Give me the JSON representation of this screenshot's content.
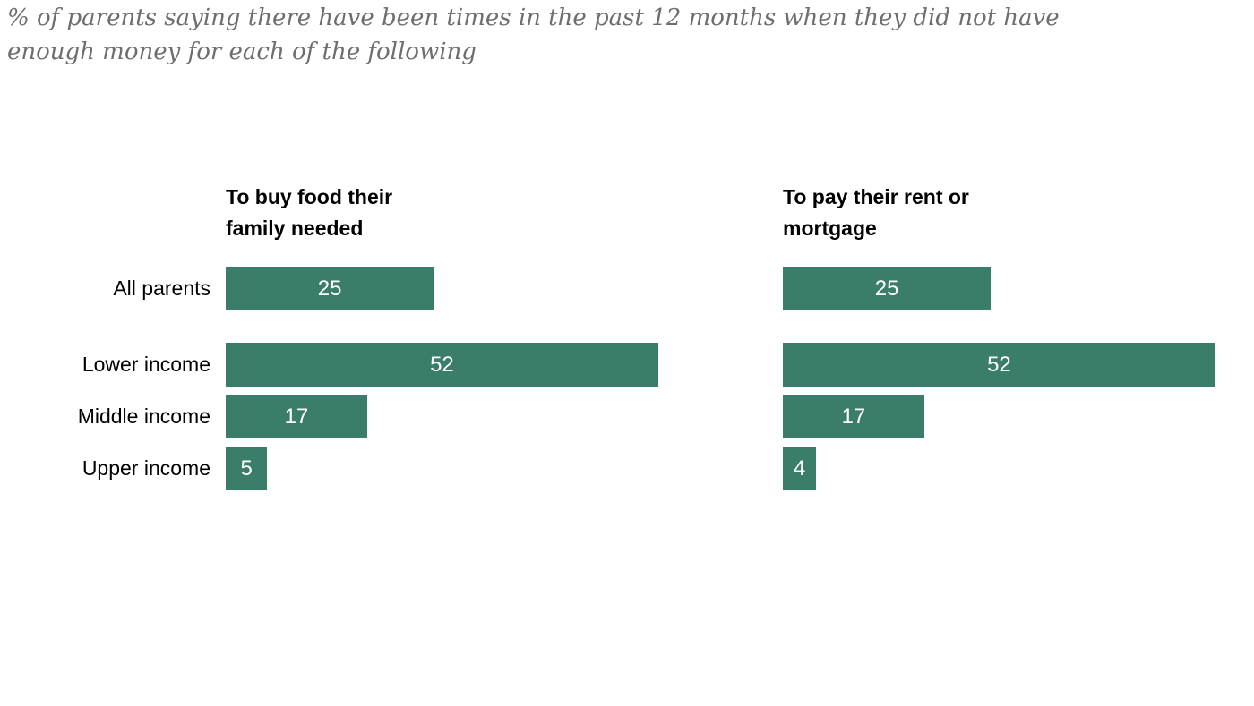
{
  "title": "% of parents saying there have been times in the past 12 months when they did not have enough money for each of the following",
  "chart_data": {
    "type": "bar",
    "orientation": "horizontal",
    "categories": [
      "All parents",
      "Lower income",
      "Middle income",
      "Upper income"
    ],
    "series": [
      {
        "name": "To buy food their family needed",
        "values": [
          25,
          52,
          17,
          5
        ]
      },
      {
        "name": "To pay their rent or mortgage",
        "values": [
          25,
          52,
          17,
          4
        ]
      }
    ],
    "bar_color": "#3a7d6a",
    "value_label_color": "#ffffff",
    "xlim": [
      0,
      56
    ],
    "grid": false,
    "legend_position": "none",
    "value_labels": "inside-center"
  }
}
